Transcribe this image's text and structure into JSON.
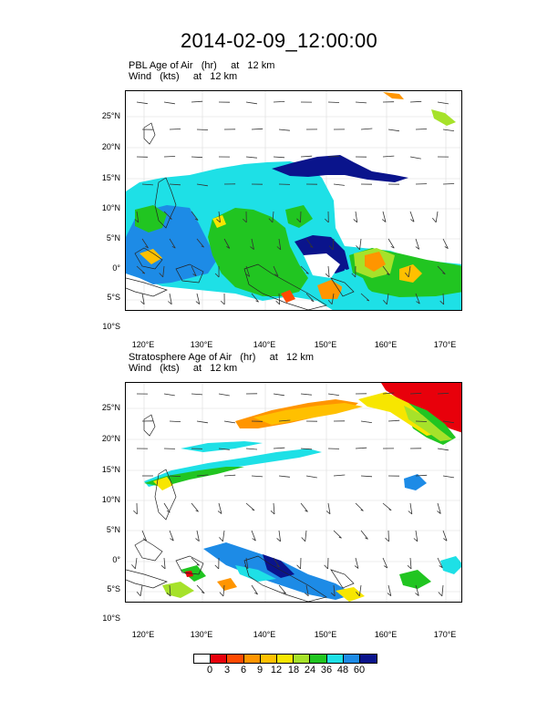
{
  "title": "2014-02-09_12:00:00",
  "panels": [
    {
      "line1": "PBL Age of Air   (hr)     at   12 km",
      "line2": "Wind   (kts)     at   12 km"
    },
    {
      "line1": "Stratosphere Age of Air   (hr)     at   12 km",
      "line2": "Wind   (kts)     at   12 km"
    }
  ],
  "axes": {
    "lat_labels": [
      "25°N",
      "20°N",
      "15°N",
      "10°N",
      "5°N",
      "0°",
      "5°S",
      "10°S"
    ],
    "lon_labels": [
      "120°E",
      "130°E",
      "140°E",
      "150°E",
      "160°E",
      "170°E"
    ]
  },
  "colorbar": {
    "labels": [
      "0",
      "3",
      "6",
      "9",
      "12",
      "18",
      "24",
      "36",
      "48",
      "60"
    ],
    "colors": [
      "#ffffff",
      "#e8000b",
      "#ff4a00",
      "#ff9500",
      "#ffc000",
      "#f7e600",
      "#a6e22a",
      "#21c521",
      "#1ee0e6",
      "#1d8be6",
      "#0a148c"
    ]
  }
}
